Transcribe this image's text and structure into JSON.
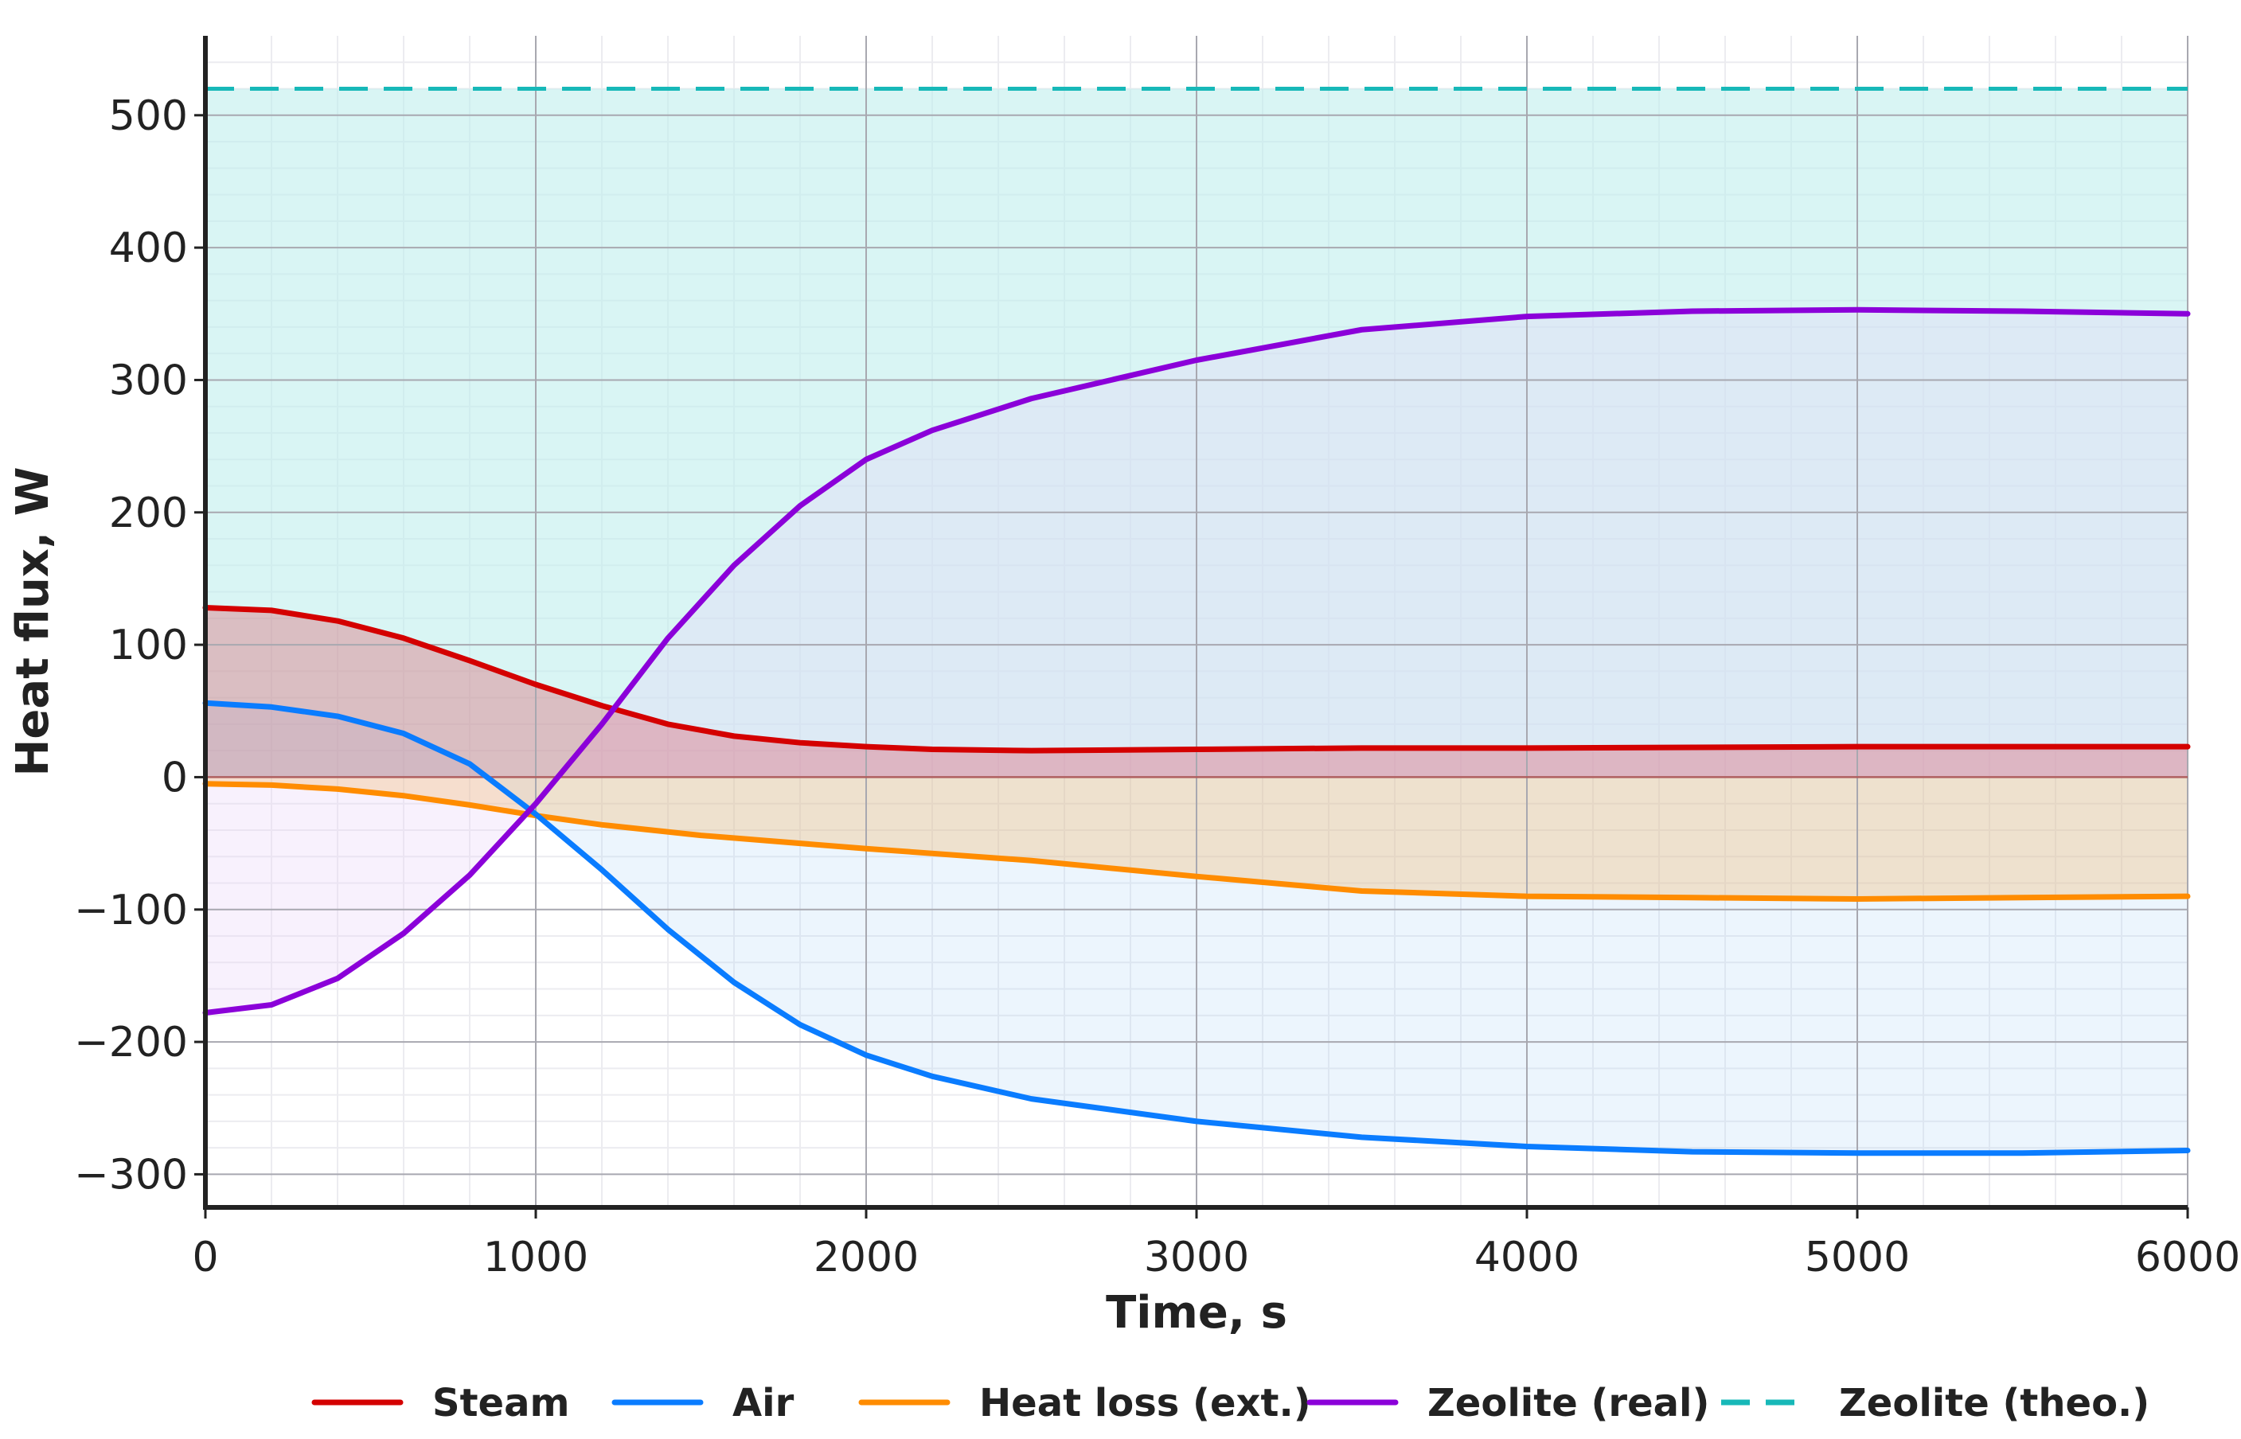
{
  "chart_data": {
    "type": "line",
    "title": "",
    "xlabel": "Time, s",
    "ylabel": "Heat flux, W",
    "xlim": [
      0,
      6000
    ],
    "ylim": [
      -325,
      560
    ],
    "xticks": [
      0,
      1000,
      2000,
      3000,
      4000,
      5000,
      6000
    ],
    "xtick_labels": [
      "0",
      "1000",
      "2000",
      "3000",
      "4000",
      "5000",
      "6000"
    ],
    "yticks": [
      -300,
      -200,
      -100,
      0,
      100,
      200,
      300,
      400,
      500
    ],
    "ytick_labels": [
      "−300",
      "−200",
      "−100",
      "0",
      "100",
      "200",
      "300",
      "400",
      "500"
    ],
    "grid": true,
    "legend_position": "bottom",
    "filled_to_zero": true,
    "series": [
      {
        "name": "Steam",
        "color": "#d40000",
        "fill": "#e03040",
        "style": "solid",
        "x": [
          0,
          200,
          400,
          600,
          800,
          1000,
          1200,
          1400,
          1600,
          1800,
          2000,
          2200,
          2500,
          3000,
          3500,
          4000,
          5000,
          6000
        ],
        "y": [
          128,
          126,
          118,
          105,
          88,
          70,
          54,
          40,
          31,
          26,
          23,
          21,
          20,
          21,
          22,
          22,
          23,
          23
        ]
      },
      {
        "name": "Air",
        "color": "#0a7cff",
        "fill": "#a8d0f5",
        "style": "solid",
        "x": [
          0,
          200,
          400,
          600,
          800,
          1000,
          1200,
          1400,
          1600,
          1800,
          2000,
          2200,
          2500,
          3000,
          3500,
          4000,
          4500,
          5000,
          5500,
          6000
        ],
        "y": [
          56,
          53,
          46,
          33,
          10,
          -28,
          -70,
          -115,
          -155,
          -187,
          -210,
          -226,
          -243,
          -260,
          -272,
          -279,
          -283,
          -284,
          -284,
          -282
        ]
      },
      {
        "name": "Heat loss (ext.)",
        "color": "#ff8c00",
        "fill": "#f2c080",
        "style": "solid",
        "x": [
          0,
          200,
          400,
          600,
          800,
          1000,
          1200,
          1500,
          2000,
          2500,
          3000,
          3500,
          4000,
          4500,
          5000,
          5500,
          6000
        ],
        "y": [
          -5,
          -6,
          -9,
          -14,
          -21,
          -29,
          -36,
          -44,
          -54,
          -63,
          -75,
          -86,
          -90,
          -91,
          -92,
          -91,
          -90
        ]
      },
      {
        "name": "Zeolite (real)",
        "color": "#8b00d9",
        "fill": "#e8cff8",
        "style": "solid",
        "x": [
          0,
          200,
          400,
          600,
          800,
          1000,
          1200,
          1400,
          1600,
          1800,
          2000,
          2200,
          2500,
          3000,
          3500,
          4000,
          4500,
          5000,
          5500,
          6000
        ],
        "y": [
          -178,
          -172,
          -152,
          -118,
          -74,
          -20,
          40,
          105,
          160,
          205,
          240,
          262,
          286,
          315,
          338,
          348,
          352,
          353,
          352,
          350
        ]
      },
      {
        "name": "Zeolite (theo.)",
        "color": "#17b8b8",
        "fill": "#bfeeed",
        "style": "dashed",
        "x": [
          0,
          6000
        ],
        "y": [
          520,
          520
        ]
      }
    ]
  }
}
